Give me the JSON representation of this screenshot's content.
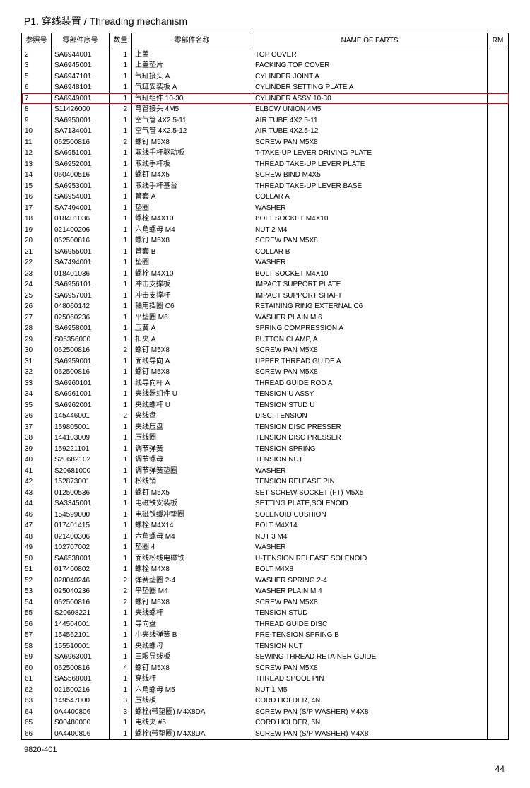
{
  "title": "P1. 穿线装置 / Threading mechanism",
  "footer_code": "9820-401",
  "page_number": "44",
  "highlight_ref": "7",
  "headers": {
    "ref": "参照号",
    "part": "零部件序号",
    "qty": "数量",
    "cn": "零部件名称",
    "en": "NAME OF PARTS",
    "rm": "RM"
  },
  "rows": [
    {
      "ref": "2",
      "part": "SA6944001",
      "qty": "1",
      "cn": "上盖",
      "en": "TOP COVER"
    },
    {
      "ref": "3",
      "part": "SA6945001",
      "qty": "1",
      "cn": "上盖垫片",
      "en": "PACKING TOP COVER"
    },
    {
      "ref": "5",
      "part": "SA6947101",
      "qty": "1",
      "cn": "气缸接头 A",
      "en": "CYLINDER JOINT A"
    },
    {
      "ref": "6",
      "part": "SA6948101",
      "qty": "1",
      "cn": "气缸安装板 A",
      "en": "CYLINDER SETTING PLATE A"
    },
    {
      "ref": "7",
      "part": "SA6949001",
      "qty": "1",
      "cn": "气缸组件 10-30",
      "en": "CYLINDER ASSY 10-30"
    },
    {
      "ref": "8",
      "part": "S11426000",
      "qty": "2",
      "cn": "弯管接头 4M5",
      "en": "ELBOW UNION 4M5"
    },
    {
      "ref": "9",
      "part": "SA6950001",
      "qty": "1",
      "cn": "空气管 4X2.5-11",
      "en": "AIR TUBE 4X2.5-11"
    },
    {
      "ref": "10",
      "part": "SA7134001",
      "qty": "1",
      "cn": "空气管 4X2.5-12",
      "en": "AIR TUBE 4X2.5-12"
    },
    {
      "ref": "11",
      "part": "062500816",
      "qty": "2",
      "cn": "螺钉 M5X8",
      "en": "SCREW PAN M5X8"
    },
    {
      "ref": "12",
      "part": "SA6951001",
      "qty": "1",
      "cn": "取线手杆驱动板",
      "en": "T-TAKE-UP LEVER DRIVING PLATE"
    },
    {
      "ref": "13",
      "part": "SA6952001",
      "qty": "1",
      "cn": "取线手杆板",
      "en": "THREAD TAKE-UP LEVER PLATE"
    },
    {
      "ref": "14",
      "part": "060400516",
      "qty": "1",
      "cn": "螺钉 M4X5",
      "en": "SCREW BIND M4X5"
    },
    {
      "ref": "15",
      "part": "SA6953001",
      "qty": "1",
      "cn": "取线手杆基台",
      "en": "THREAD TAKE-UP LEVER BASE"
    },
    {
      "ref": "16",
      "part": "SA6954001",
      "qty": "1",
      "cn": "管套 A",
      "en": "COLLAR A"
    },
    {
      "ref": "17",
      "part": "SA7494001",
      "qty": "1",
      "cn": "垫圈",
      "en": "WASHER"
    },
    {
      "ref": "18",
      "part": "018401036",
      "qty": "1",
      "cn": "螺栓 M4X10",
      "en": "BOLT SOCKET M4X10"
    },
    {
      "ref": "19",
      "part": "021400206",
      "qty": "1",
      "cn": "六角螺母 M4",
      "en": "NUT 2 M4"
    },
    {
      "ref": "20",
      "part": "062500816",
      "qty": "1",
      "cn": "螺钉 M5X8",
      "en": "SCREW PAN M5X8"
    },
    {
      "ref": "21",
      "part": "SA6955001",
      "qty": "1",
      "cn": "管套 B",
      "en": "COLLAR B"
    },
    {
      "ref": "22",
      "part": "SA7494001",
      "qty": "1",
      "cn": "垫圈",
      "en": "WASHER"
    },
    {
      "ref": "23",
      "part": "018401036",
      "qty": "1",
      "cn": "螺栓 M4X10",
      "en": "BOLT SOCKET M4X10"
    },
    {
      "ref": "24",
      "part": "SA6956101",
      "qty": "1",
      "cn": "冲击支撑板",
      "en": "IMPACT SUPPORT PLATE"
    },
    {
      "ref": "25",
      "part": "SA6957001",
      "qty": "1",
      "cn": "冲击支撑杆",
      "en": "IMPACT SUPPORT SHAFT"
    },
    {
      "ref": "26",
      "part": "048060142",
      "qty": "1",
      "cn": "轴用挡圈 C6",
      "en": "RETAINING RING EXTERNAL C6"
    },
    {
      "ref": "27",
      "part": "025060236",
      "qty": "1",
      "cn": "平垫圈 M6",
      "en": "WASHER PLAIN M 6"
    },
    {
      "ref": "28",
      "part": "SA6958001",
      "qty": "1",
      "cn": "压簧 A",
      "en": "SPRING COMPRESSION A"
    },
    {
      "ref": "29",
      "part": "S05356000",
      "qty": "1",
      "cn": "扣夹 A",
      "en": "BUTTON CLAMP, A"
    },
    {
      "ref": "30",
      "part": "062500816",
      "qty": "2",
      "cn": "螺钉 M5X8",
      "en": "SCREW PAN M5X8"
    },
    {
      "ref": "31",
      "part": "SA6959001",
      "qty": "1",
      "cn": "面线导向 A",
      "en": "UPPER THREAD GUIDE A"
    },
    {
      "ref": "32",
      "part": "062500816",
      "qty": "1",
      "cn": "螺钉 M5X8",
      "en": "SCREW PAN M5X8"
    },
    {
      "ref": "33",
      "part": "SA6960101",
      "qty": "1",
      "cn": "线导向杆 A",
      "en": "THREAD GUIDE ROD A"
    },
    {
      "ref": "34",
      "part": "SA6961001",
      "qty": "1",
      "cn": "夹线器组件 U",
      "en": "TENSION U ASSY"
    },
    {
      "ref": "35",
      "part": "SA6962001",
      "qty": "1",
      "cn": "夹线螺杆 U",
      "en": "TENSION STUD U"
    },
    {
      "ref": "36",
      "part": "145446001",
      "qty": "2",
      "cn": "夹线盘",
      "en": "DISC, TENSION"
    },
    {
      "ref": "37",
      "part": "159805001",
      "qty": "1",
      "cn": "夹线压盘",
      "en": "TENSION DISC PRESSER"
    },
    {
      "ref": "38",
      "part": "144103009",
      "qty": "1",
      "cn": "压线圈",
      "en": "TENSION DISC PRESSER"
    },
    {
      "ref": "39",
      "part": "159221101",
      "qty": "1",
      "cn": "调节弹簧",
      "en": "TENSION SPRING"
    },
    {
      "ref": "40",
      "part": "S20682102",
      "qty": "1",
      "cn": "调节螺母",
      "en": "TENSION NUT"
    },
    {
      "ref": "41",
      "part": "S20681000",
      "qty": "1",
      "cn": "调节弹簧垫圈",
      "en": "WASHER"
    },
    {
      "ref": "42",
      "part": "152873001",
      "qty": "1",
      "cn": "松线销",
      "en": "TENSION RELEASE PIN"
    },
    {
      "ref": "43",
      "part": "012500536",
      "qty": "1",
      "cn": "螺钉 M5X5",
      "en": "SET SCREW SOCKET (FT) M5X5"
    },
    {
      "ref": "44",
      "part": "SA3345001",
      "qty": "1",
      "cn": "电磁铁安装板",
      "en": "SETTING PLATE,SOLENOID"
    },
    {
      "ref": "46",
      "part": "154599000",
      "qty": "1",
      "cn": "电磁铁缓冲垫圈",
      "en": "SOLENOID CUSHION"
    },
    {
      "ref": "47",
      "part": "017401415",
      "qty": "1",
      "cn": "螺栓 M4X14",
      "en": "BOLT M4X14"
    },
    {
      "ref": "48",
      "part": "021400306",
      "qty": "1",
      "cn": "六角螺母 M4",
      "en": "NUT 3 M4"
    },
    {
      "ref": "49",
      "part": "102707002",
      "qty": "1",
      "cn": "垫圈 4",
      "en": "WASHER"
    },
    {
      "ref": "50",
      "part": "SA6538001",
      "qty": "1",
      "cn": "面线松线电磁铁",
      "en": "U-TENSION RELEASE SOLENOID"
    },
    {
      "ref": "51",
      "part": "017400802",
      "qty": "1",
      "cn": "螺栓 M4X8",
      "en": "BOLT M4X8"
    },
    {
      "ref": "52",
      "part": "028040246",
      "qty": "2",
      "cn": "弹簧垫圈 2-4",
      "en": "WASHER SPRING 2-4"
    },
    {
      "ref": "53",
      "part": "025040236",
      "qty": "2",
      "cn": "平垫圈 M4",
      "en": "WASHER PLAIN M 4"
    },
    {
      "ref": "54",
      "part": "062500816",
      "qty": "2",
      "cn": "螺钉 M5X8",
      "en": "SCREW PAN M5X8"
    },
    {
      "ref": "55",
      "part": "S20698221",
      "qty": "1",
      "cn": "夹线螺杆",
      "en": "TENSION STUD"
    },
    {
      "ref": "56",
      "part": "144504001",
      "qty": "1",
      "cn": "导向盘",
      "en": "THREAD GUIDE DISC"
    },
    {
      "ref": "57",
      "part": "154562101",
      "qty": "1",
      "cn": "小夹线弹簧 B",
      "en": "PRE-TENSION SPRING B"
    },
    {
      "ref": "58",
      "part": "155510001",
      "qty": "1",
      "cn": "夹线螺母",
      "en": "TENSION NUT"
    },
    {
      "ref": "59",
      "part": "SA6963001",
      "qty": "1",
      "cn": "三眼导线板",
      "en": "SEWING THREAD RETAINER GUIDE"
    },
    {
      "ref": "60",
      "part": "062500816",
      "qty": "4",
      "cn": "螺钉 M5X8",
      "en": "SCREW PAN M5X8"
    },
    {
      "ref": "61",
      "part": "SA5568001",
      "qty": "1",
      "cn": "穿线杆",
      "en": "THREAD SPOOL PIN"
    },
    {
      "ref": "62",
      "part": "021500216",
      "qty": "1",
      "cn": "六角螺母 M5",
      "en": "NUT 1 M5"
    },
    {
      "ref": "63",
      "part": "149547000",
      "qty": "3",
      "cn": "压线板",
      "en": "CORD HOLDER, 4N"
    },
    {
      "ref": "64",
      "part": "0A4400806",
      "qty": "3",
      "cn": "螺栓(带垫圈) M4X8DA",
      "en": "SCREW PAN (S/P WASHER) M4X8"
    },
    {
      "ref": "65",
      "part": "S00480000",
      "qty": "1",
      "cn": "电线夹 #5",
      "en": "CORD HOLDER, 5N"
    },
    {
      "ref": "66",
      "part": "0A4400806",
      "qty": "1",
      "cn": "螺栓(带垫圈) M4X8DA",
      "en": "SCREW PAN (S/P WASHER) M4X8"
    }
  ]
}
